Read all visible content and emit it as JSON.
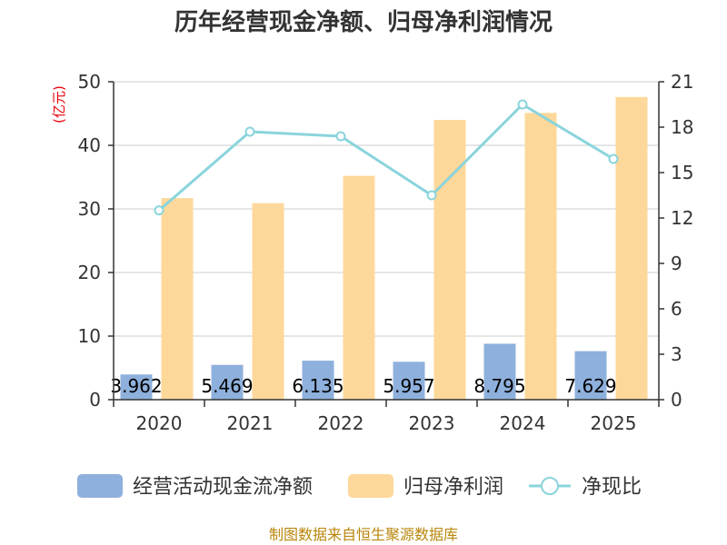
{
  "chart_data": {
    "type": "bar",
    "title": "历年经营现金净额、归母净利润情况",
    "categories": [
      "2020",
      "2021",
      "2022",
      "2023",
      "2024",
      "2025"
    ],
    "y_left": {
      "unit_label": "(亿元)",
      "ylim": [
        0,
        50
      ],
      "ticks": [
        "0",
        "10",
        "20",
        "30",
        "40",
        "50"
      ]
    },
    "y_right": {
      "ylim": [
        0,
        21
      ],
      "ticks": [
        "0",
        "3",
        "6",
        "9",
        "12",
        "15",
        "18",
        "21"
      ]
    },
    "series": [
      {
        "name": "经营活动现金流净额",
        "type": "bar",
        "axis": "left",
        "color": "#8eb0dc",
        "values": [
          3.962,
          5.469,
          6.135,
          5.957,
          8.795,
          7.629
        ],
        "labels": [
          "3.962",
          "5.469",
          "6.135",
          "5.957",
          "8.795",
          "7.629"
        ]
      },
      {
        "name": "归母净利润",
        "type": "bar",
        "axis": "left",
        "color": "#fdd89a",
        "values": [
          31.7,
          30.9,
          35.2,
          44.0,
          45.1,
          47.6
        ]
      },
      {
        "name": "净现比",
        "type": "line",
        "axis": "right",
        "color": "#8ad4dc",
        "values": [
          12.5,
          17.7,
          17.4,
          13.5,
          19.5,
          15.9
        ]
      }
    ],
    "grid": true,
    "legend": "bottom",
    "source": "制图数据来自恒生聚源数据库"
  }
}
